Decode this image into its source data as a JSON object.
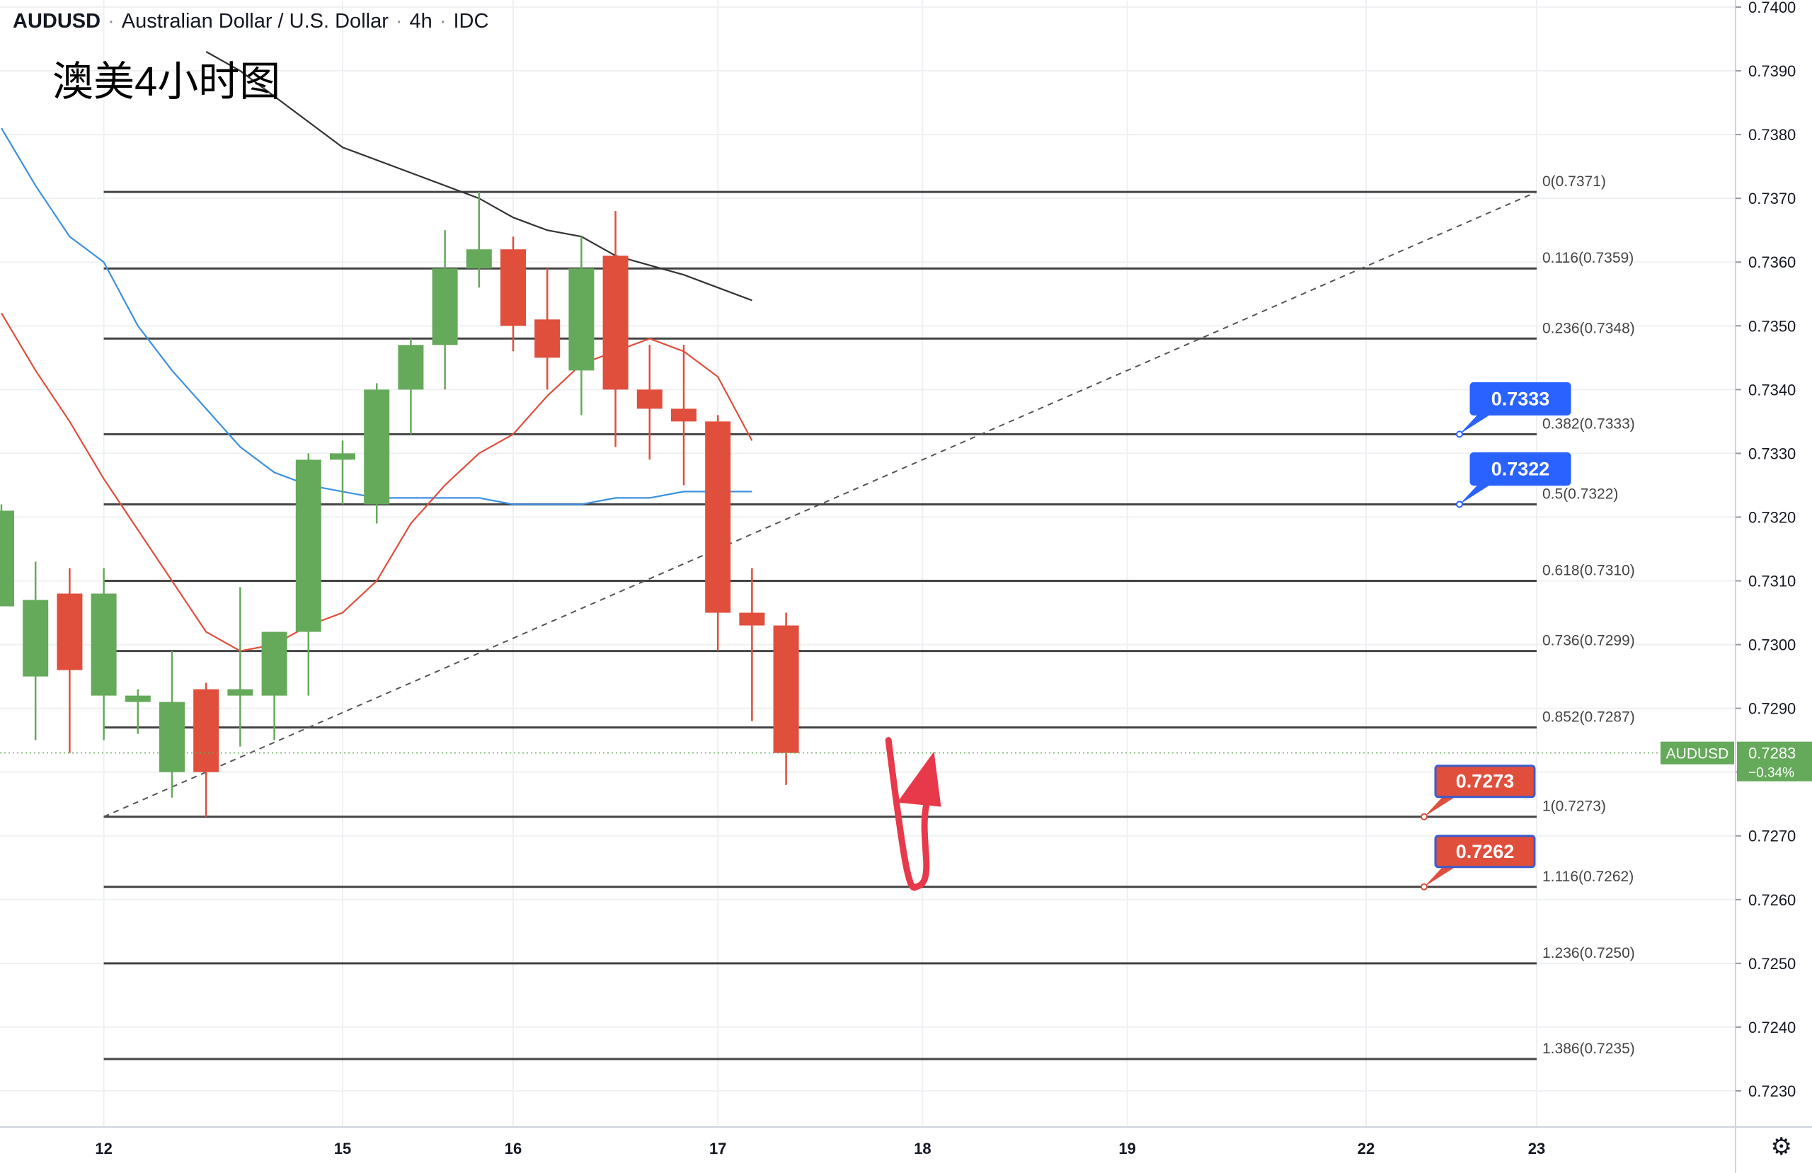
{
  "header": {
    "symbol": "AUDUSD",
    "name": "Australian Dollar / U.S. Dollar",
    "interval": "4h",
    "source": "IDC"
  },
  "overlay_title": "澳美4小时图",
  "price_tag": {
    "symbol": "AUDUSD",
    "price": "0.7283",
    "change": "−0.34%"
  },
  "callouts": [
    {
      "label": "0.7333",
      "value": 0.7333,
      "color": "#2962ff"
    },
    {
      "label": "0.7322",
      "value": 0.7322,
      "color": "#2962ff"
    },
    {
      "label": "0.7273",
      "value": 0.7273,
      "color": "#e04e3c"
    },
    {
      "label": "0.7262",
      "value": 0.7262,
      "color": "#e04e3c"
    }
  ],
  "settings_icon": "gear-icon",
  "colors": {
    "up": "#65a95a",
    "down": "#e04e3c",
    "ma_blue": "#3d8fe0",
    "ma_red": "#e04e3c",
    "ma_black": "#333333",
    "fib": "#444444",
    "arrow": "#e8394a"
  },
  "chart_data": {
    "type": "candlestick",
    "y_range": [
      0.7225,
      0.74
    ],
    "y_ticks": [
      "0.7230",
      "0.7240",
      "0.7250",
      "0.7260",
      "0.7270",
      "0.7280",
      "0.7290",
      "0.7300",
      "0.7310",
      "0.7320",
      "0.7330",
      "0.7340",
      "0.7350",
      "0.7360",
      "0.7370",
      "0.7380",
      "0.7390",
      "0.7400"
    ],
    "x_ticks": [
      {
        "label": "12",
        "bar": 3
      },
      {
        "label": "15",
        "bar": 10
      },
      {
        "label": "16",
        "bar": 15
      },
      {
        "label": "17",
        "bar": 21
      },
      {
        "label": "18",
        "bar": 27
      },
      {
        "label": "19",
        "bar": 33
      },
      {
        "label": "22",
        "bar": 40
      },
      {
        "label": "23",
        "bar": 45
      }
    ],
    "bars": [
      {
        "o": 0.7306,
        "h": 0.7322,
        "l": 0.7306,
        "c": 0.7321
      },
      {
        "o": 0.7295,
        "h": 0.7313,
        "l": 0.7285,
        "c": 0.7307
      },
      {
        "o": 0.7308,
        "h": 0.7312,
        "l": 0.7283,
        "c": 0.7296
      },
      {
        "o": 0.7292,
        "h": 0.7312,
        "l": 0.7285,
        "c": 0.7308
      },
      {
        "o": 0.7291,
        "h": 0.7293,
        "l": 0.7286,
        "c": 0.7292
      },
      {
        "o": 0.728,
        "h": 0.7299,
        "l": 0.7276,
        "c": 0.7291
      },
      {
        "o": 0.7293,
        "h": 0.7294,
        "l": 0.7273,
        "c": 0.728
      },
      {
        "o": 0.7292,
        "h": 0.7309,
        "l": 0.7284,
        "c": 0.7293
      },
      {
        "o": 0.7292,
        "h": 0.7302,
        "l": 0.7285,
        "c": 0.7302
      },
      {
        "o": 0.7302,
        "h": 0.733,
        "l": 0.7292,
        "c": 0.7329
      },
      {
        "o": 0.7329,
        "h": 0.7332,
        "l": 0.7322,
        "c": 0.733
      },
      {
        "o": 0.7322,
        "h": 0.7341,
        "l": 0.7319,
        "c": 0.734
      },
      {
        "o": 0.734,
        "h": 0.7348,
        "l": 0.7333,
        "c": 0.7347
      },
      {
        "o": 0.7347,
        "h": 0.7365,
        "l": 0.734,
        "c": 0.7359
      },
      {
        "o": 0.7359,
        "h": 0.7371,
        "l": 0.7356,
        "c": 0.7362
      },
      {
        "o": 0.7362,
        "h": 0.7364,
        "l": 0.7346,
        "c": 0.735
      },
      {
        "o": 0.7351,
        "h": 0.7359,
        "l": 0.734,
        "c": 0.7345
      },
      {
        "o": 0.7343,
        "h": 0.7364,
        "l": 0.7336,
        "c": 0.7359
      },
      {
        "o": 0.7361,
        "h": 0.7368,
        "l": 0.7331,
        "c": 0.734
      },
      {
        "o": 0.734,
        "h": 0.7347,
        "l": 0.7329,
        "c": 0.7337
      },
      {
        "o": 0.7337,
        "h": 0.7347,
        "l": 0.7325,
        "c": 0.7335
      },
      {
        "o": 0.7335,
        "h": 0.7336,
        "l": 0.7299,
        "c": 0.7305
      },
      {
        "o": 0.7305,
        "h": 0.7312,
        "l": 0.7288,
        "c": 0.7303
      },
      {
        "o": 0.7303,
        "h": 0.7305,
        "l": 0.7278,
        "c": 0.7283
      }
    ],
    "moving_averages": [
      {
        "color": "#333333",
        "points": [
          [
            6,
            0.7393
          ],
          [
            7,
            0.739
          ],
          [
            8,
            0.7386
          ],
          [
            9,
            0.7382
          ],
          [
            10,
            0.7378
          ],
          [
            12,
            0.7374
          ],
          [
            14,
            0.737
          ],
          [
            15,
            0.7367
          ],
          [
            16,
            0.7365
          ],
          [
            17,
            0.7364
          ],
          [
            18,
            0.7361
          ],
          [
            20,
            0.7358
          ],
          [
            22,
            0.7354
          ]
        ]
      },
      {
        "color": "#3d8fe0",
        "points": [
          [
            0,
            0.7381
          ],
          [
            1,
            0.7372
          ],
          [
            2,
            0.7364
          ],
          [
            3,
            0.736
          ],
          [
            4,
            0.735
          ],
          [
            5,
            0.7343
          ],
          [
            6,
            0.7337
          ],
          [
            7,
            0.7331
          ],
          [
            8,
            0.7327
          ],
          [
            9,
            0.7325
          ],
          [
            10,
            0.7324
          ],
          [
            11,
            0.7323
          ],
          [
            12,
            0.7323
          ],
          [
            13,
            0.7323
          ],
          [
            14,
            0.7323
          ],
          [
            15,
            0.7322
          ],
          [
            16,
            0.7322
          ],
          [
            17,
            0.7322
          ],
          [
            18,
            0.7323
          ],
          [
            19,
            0.7323
          ],
          [
            20,
            0.7324
          ],
          [
            21,
            0.7324
          ],
          [
            22,
            0.7324
          ]
        ]
      },
      {
        "color": "#e04e3c",
        "points": [
          [
            0,
            0.7352
          ],
          [
            1,
            0.7343
          ],
          [
            2,
            0.7335
          ],
          [
            3,
            0.7326
          ],
          [
            4,
            0.7318
          ],
          [
            5,
            0.731
          ],
          [
            6,
            0.7302
          ],
          [
            7,
            0.7299
          ],
          [
            8,
            0.73
          ],
          [
            9,
            0.7303
          ],
          [
            10,
            0.7305
          ],
          [
            11,
            0.731
          ],
          [
            12,
            0.7319
          ],
          [
            13,
            0.7325
          ],
          [
            14,
            0.733
          ],
          [
            15,
            0.7333
          ],
          [
            16,
            0.7339
          ],
          [
            17,
            0.7344
          ],
          [
            18,
            0.7346
          ],
          [
            19,
            0.7348
          ],
          [
            20,
            0.7346
          ],
          [
            21,
            0.7342
          ],
          [
            22,
            0.7332
          ]
        ]
      }
    ],
    "fib_levels": [
      {
        "label": "0(0.7371)",
        "value": 0.7371
      },
      {
        "label": "0.116(0.7359)",
        "value": 0.7359
      },
      {
        "label": "0.236(0.7348)",
        "value": 0.7348
      },
      {
        "label": "0.382(0.7333)",
        "value": 0.7333
      },
      {
        "label": "0.5(0.7322)",
        "value": 0.7322
      },
      {
        "label": "0.618(0.7310)",
        "value": 0.731
      },
      {
        "label": "0.736(0.7299)",
        "value": 0.7299
      },
      {
        "label": "0.852(0.7287)",
        "value": 0.7287
      },
      {
        "label": "1(0.7273)",
        "value": 0.7273
      },
      {
        "label": "1.116(0.7262)",
        "value": 0.7262
      },
      {
        "label": "1.236(0.7250)",
        "value": 0.725
      },
      {
        "label": "1.386(0.7235)",
        "value": 0.7235
      }
    ],
    "fib_bar_range": [
      3,
      45
    ],
    "trend_line": {
      "from": [
        3,
        0.7273
      ],
      "to": [
        45,
        0.7371
      ]
    },
    "current_price": 0.7283,
    "projection_arrow": {
      "start": [
        26.0,
        0.7285
      ],
      "bottom": [
        26.8,
        0.7262
      ],
      "end": [
        27.5,
        0.7283
      ]
    }
  }
}
